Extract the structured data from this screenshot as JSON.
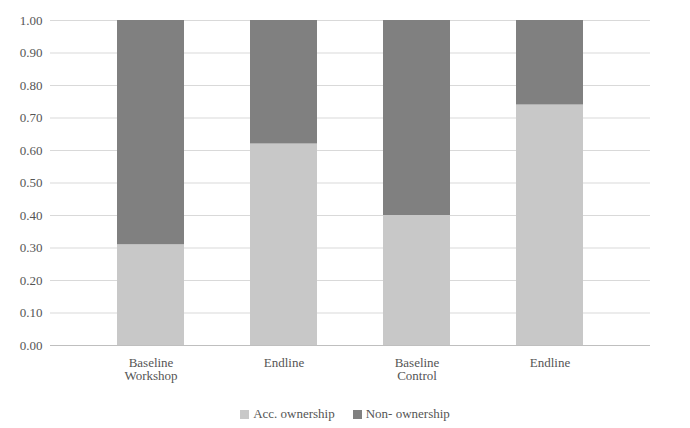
{
  "chart_data": {
    "type": "bar",
    "stacked": true,
    "categories": [
      "Baseline\nWorkshop",
      "Endline",
      "Baseline\nControl",
      "Endline"
    ],
    "series": [
      {
        "name": "Acc. ownership",
        "color": "#c8c8c8",
        "values": [
          0.31,
          0.62,
          0.4,
          0.74
        ]
      },
      {
        "name": "Non- ownership",
        "color": "#808080",
        "values": [
          0.69,
          0.38,
          0.6,
          0.26
        ]
      }
    ],
    "ylim": [
      0,
      1
    ],
    "yticks": [
      {
        "value": 0,
        "label": "0.00"
      },
      {
        "value": 0.1,
        "label": "0.10"
      },
      {
        "value": 0.2,
        "label": "0.20"
      },
      {
        "value": 0.3,
        "label": "0.30"
      },
      {
        "value": 0.4,
        "label": "0.40"
      },
      {
        "value": 0.5,
        "label": "0.50"
      },
      {
        "value": 0.6,
        "label": "0.60"
      },
      {
        "value": 0.7,
        "label": "0.70"
      },
      {
        "value": 0.8,
        "label": "0.80"
      },
      {
        "value": 0.9,
        "label": "0.90"
      },
      {
        "value": 1,
        "label": "1.00"
      }
    ],
    "grid": true,
    "legend": "bottom"
  }
}
